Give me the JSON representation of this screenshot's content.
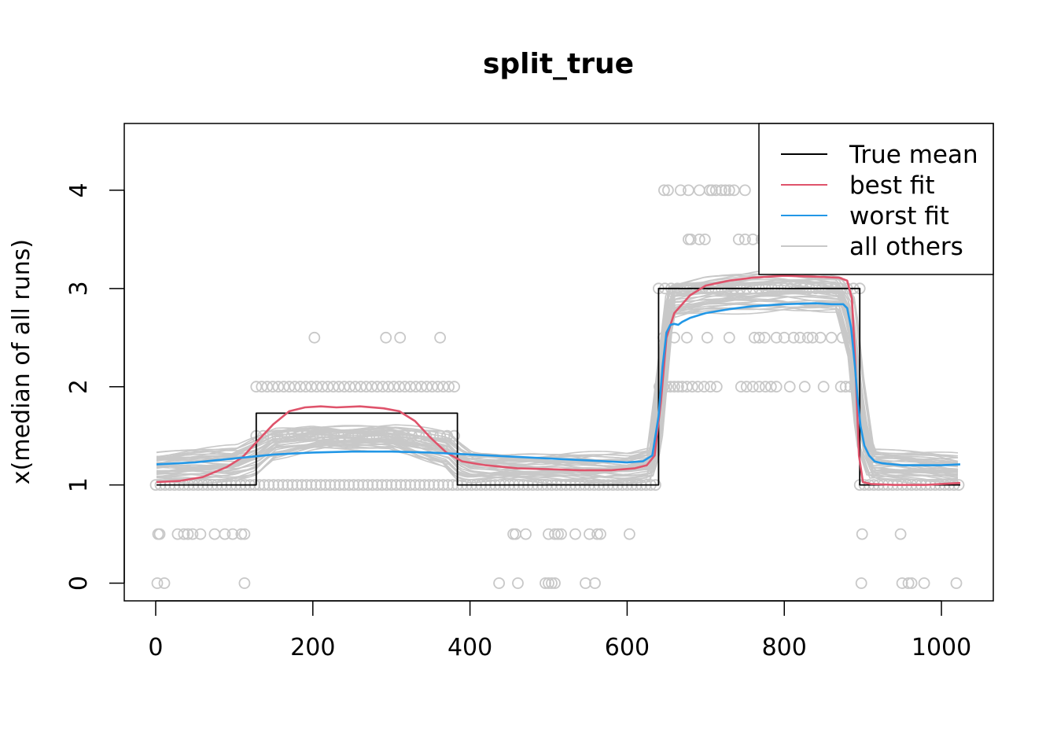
{
  "chart_data": {
    "type": "line",
    "title": "split_true",
    "xlabel": "",
    "ylabel": "x(median of all runs)",
    "xlim": [
      -40,
      1066
    ],
    "ylim": [
      -0.18,
      4.68
    ],
    "xticks": [
      0,
      200,
      400,
      600,
      800,
      1000
    ],
    "xtick_labels": [
      "0",
      "200",
      "400",
      "600",
      "800",
      "1000"
    ],
    "yticks": [
      0,
      1,
      2,
      3,
      4
    ],
    "ytick_labels": [
      "0",
      "1",
      "2",
      "3",
      "4"
    ],
    "grid": false,
    "legend_position": "top-right",
    "legend": [
      {
        "label": "True mean",
        "color": "#000000"
      },
      {
        "label": "best fit",
        "color": "#DF536B"
      },
      {
        "label": "worst fit",
        "color": "#2297E6"
      },
      {
        "label": "all others",
        "color": "#C8C8C8"
      }
    ],
    "series": [
      {
        "name": "True mean",
        "color": "#000000",
        "x": [
          1,
          128,
          128,
          384,
          384,
          640,
          640,
          896,
          896,
          1024
        ],
        "y": [
          1,
          1,
          1.73,
          1.73,
          1,
          1,
          3,
          3,
          1,
          1
        ]
      },
      {
        "name": "best fit",
        "color": "#DF536B",
        "x": [
          1,
          30,
          60,
          90,
          110,
          130,
          150,
          170,
          190,
          210,
          230,
          260,
          290,
          310,
          330,
          350,
          370,
          390,
          420,
          460,
          500,
          540,
          580,
          610,
          625,
          635,
          643,
          650,
          660,
          680,
          700,
          730,
          760,
          800,
          840,
          870,
          880,
          886,
          890,
          895,
          900,
          910,
          940,
          980,
          1024
        ],
        "y": [
          1.03,
          1.04,
          1.08,
          1.18,
          1.28,
          1.45,
          1.62,
          1.75,
          1.79,
          1.8,
          1.79,
          1.8,
          1.78,
          1.75,
          1.65,
          1.48,
          1.33,
          1.24,
          1.2,
          1.17,
          1.16,
          1.15,
          1.15,
          1.17,
          1.2,
          1.3,
          1.85,
          2.5,
          2.75,
          2.93,
          3.03,
          3.08,
          3.11,
          3.13,
          3.12,
          3.11,
          3.08,
          2.9,
          2.3,
          1.3,
          1.03,
          1.01,
          1.0,
          1.0,
          1.02
        ]
      },
      {
        "name": "worst fit",
        "color": "#2297E6",
        "x": [
          1,
          50,
          100,
          150,
          200,
          250,
          300,
          350,
          400,
          450,
          500,
          550,
          600,
          620,
          632,
          640,
          645,
          650,
          655,
          660,
          665,
          670,
          680,
          700,
          730,
          760,
          800,
          840,
          860,
          875,
          880,
          885,
          890,
          893,
          897,
          902,
          908,
          915,
          925,
          950,
          1000,
          1024
        ],
        "y": [
          1.21,
          1.23,
          1.27,
          1.31,
          1.33,
          1.34,
          1.34,
          1.33,
          1.31,
          1.29,
          1.27,
          1.25,
          1.23,
          1.24,
          1.3,
          1.7,
          2.2,
          2.55,
          2.63,
          2.64,
          2.63,
          2.66,
          2.7,
          2.75,
          2.79,
          2.82,
          2.84,
          2.85,
          2.84,
          2.84,
          2.8,
          2.6,
          2.2,
          1.9,
          1.6,
          1.4,
          1.3,
          1.24,
          1.22,
          1.2,
          1.2,
          1.21
        ]
      }
    ],
    "others_band": {
      "name": "all others",
      "color": "#C8C8C8",
      "count": 40,
      "x": [
        1,
        100,
        128,
        150,
        200,
        300,
        370,
        384,
        400,
        500,
        600,
        630,
        640,
        655,
        700,
        800,
        870,
        886,
        896,
        910,
        1024
      ],
      "y_low": [
        1.04,
        1.06,
        1.12,
        1.28,
        1.36,
        1.38,
        1.2,
        1.08,
        1.05,
        1.04,
        1.04,
        1.06,
        1.35,
        2.7,
        2.75,
        2.8,
        2.78,
        2.2,
        1.3,
        1.05,
        1.03
      ],
      "y_high": [
        1.33,
        1.37,
        1.48,
        1.56,
        1.6,
        1.58,
        1.52,
        1.42,
        1.33,
        1.3,
        1.3,
        1.38,
        2.1,
        3.05,
        3.12,
        3.16,
        3.12,
        2.95,
        2.2,
        1.38,
        1.28
      ]
    },
    "points": {
      "name": "all others",
      "color": "#C8C8C8",
      "groups": [
        {
          "y": 0,
          "x": [
            2,
            11,
            113,
            437,
            461,
            496,
            500,
            504,
            508,
            547,
            559,
            898,
            950,
            958,
            962,
            978,
            1019
          ]
        },
        {
          "y": 0.5,
          "x": [
            3,
            5,
            28,
            36,
            41,
            47,
            57,
            75,
            88,
            98,
            109,
            113,
            455,
            458,
            471,
            500,
            508,
            512,
            516,
            534,
            552,
            562,
            566,
            603,
            899,
            948
          ]
        },
        {
          "y": 1,
          "range": [
            0,
            640
          ],
          "step": 6
        },
        {
          "y": 1,
          "range": [
            896,
            1024
          ],
          "step": 6
        },
        {
          "y": 1.5,
          "range": [
            128,
            384
          ],
          "step": 9
        },
        {
          "y": 2,
          "range": [
            128,
            384
          ],
          "step": 7
        },
        {
          "y": 2.5,
          "x": [
            202,
            293,
            311,
            362
          ]
        },
        {
          "y": 2,
          "x": [
            641,
            646,
            650,
            655,
            660,
            665,
            670,
            676,
            683,
            690,
            698,
            706,
            714,
            745,
            752,
            760,
            768,
            776,
            783,
            790,
            807,
            826,
            850,
            872,
            878,
            884,
            890
          ]
        },
        {
          "y": 2.5,
          "x": [
            646,
            660,
            676,
            702,
            730,
            762,
            768,
            775,
            790,
            800,
            812,
            820,
            830,
            836,
            846,
            860,
            874,
            884
          ]
        },
        {
          "y": 3,
          "range": [
            640,
            896
          ],
          "step": 8
        },
        {
          "y": 3.5,
          "x": [
            678,
            681,
            692,
            699,
            742,
            750,
            760,
            771,
            780
          ]
        },
        {
          "y": 4,
          "x": [
            647,
            652,
            668,
            678,
            692,
            705,
            708,
            713,
            720,
            725,
            730,
            736,
            750
          ]
        }
      ]
    }
  }
}
